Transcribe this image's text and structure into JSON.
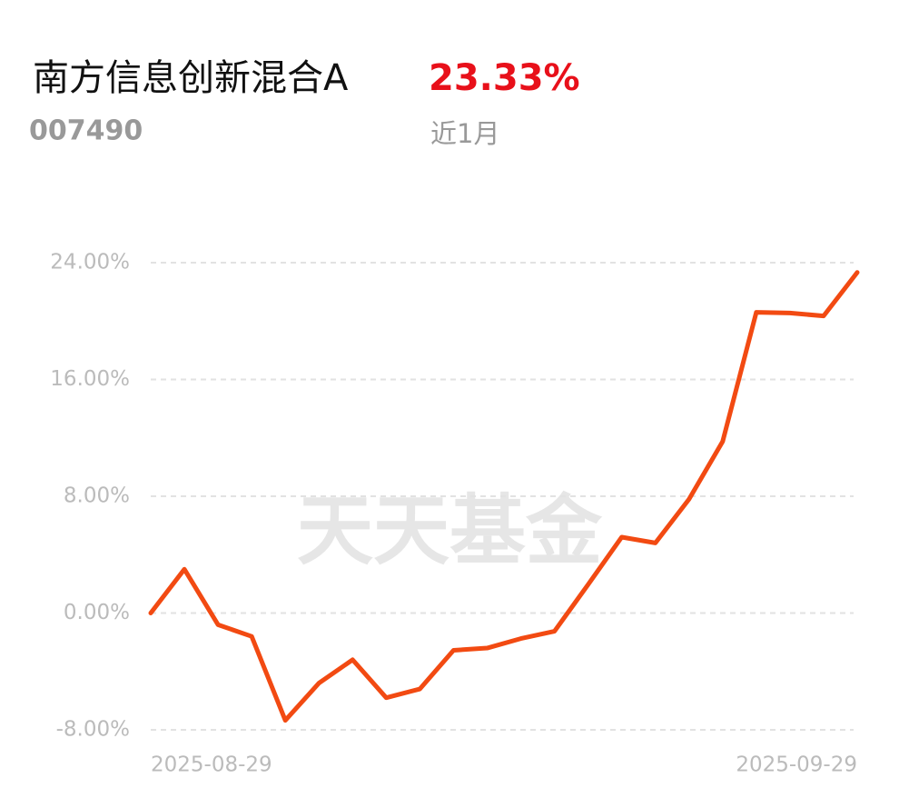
{
  "chart_data": {
    "type": "line",
    "title": "南方信息创新混合A",
    "headline_value": "23.33%",
    "code": "007490",
    "period": "近1月",
    "watermark": "天天基金",
    "categories": [
      "2025-08-29",
      null,
      null,
      null,
      null,
      null,
      null,
      null,
      null,
      null,
      null,
      null,
      null,
      null,
      null,
      null,
      null,
      null,
      null,
      null,
      null,
      "2025-09-29"
    ],
    "series": [
      {
        "color": "#f24a12",
        "values": [
          0.0,
          3.0,
          -0.8,
          -1.6,
          -7.35,
          -4.8,
          -3.2,
          -5.8,
          -5.2,
          -2.55,
          -2.4,
          -1.75,
          -1.25,
          1.95,
          5.2,
          4.8,
          7.8,
          11.75,
          20.6,
          20.55,
          20.35,
          23.33
        ]
      }
    ],
    "ylim": [
      -8,
      24
    ],
    "yticks": [
      {
        "value": 24,
        "label": "24.00%"
      },
      {
        "value": 16,
        "label": "16.00%"
      },
      {
        "value": 8,
        "label": "8.00%"
      },
      {
        "value": 0,
        "label": "0.00%"
      },
      {
        "value": -8,
        "label": "-8.00%"
      }
    ],
    "grid": true
  }
}
